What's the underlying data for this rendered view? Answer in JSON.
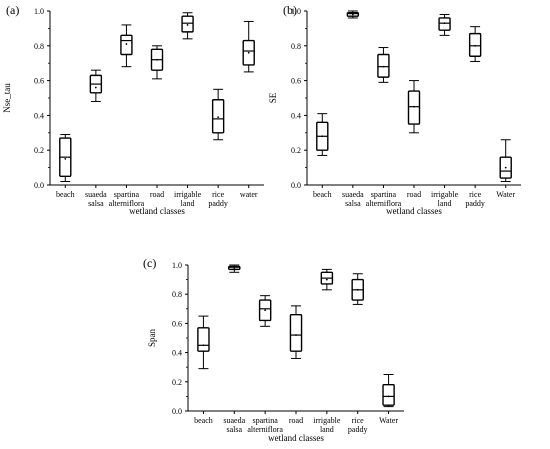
{
  "chart_data": [
    {
      "type": "box",
      "panel_label": "(a)",
      "ylabel": "Nse_tau",
      "xlabel": "wetland classes",
      "ylim": [
        0,
        1.0
      ],
      "yticks": [
        "0.0",
        "0.2",
        "0.4",
        "0.6",
        "0.8",
        "1.0"
      ],
      "categories": [
        [
          "beach"
        ],
        [
          "suaeda",
          "salsa"
        ],
        [
          "spartina",
          "alterniflora"
        ],
        [
          "road"
        ],
        [
          "irrigable",
          "land"
        ],
        [
          "rice",
          "paddy"
        ],
        [
          "water"
        ]
      ],
      "boxes": [
        {
          "min": 0.02,
          "q1": 0.05,
          "median": 0.16,
          "mean": 0.15,
          "q3": 0.27,
          "max": 0.29
        },
        {
          "min": 0.48,
          "q1": 0.53,
          "median": 0.58,
          "mean": 0.56,
          "q3": 0.63,
          "max": 0.66
        },
        {
          "min": 0.68,
          "q1": 0.75,
          "median": 0.83,
          "mean": 0.81,
          "q3": 0.86,
          "max": 0.92
        },
        {
          "min": 0.61,
          "q1": 0.66,
          "median": 0.72,
          "mean": 0.72,
          "q3": 0.78,
          "max": 0.8
        },
        {
          "min": 0.84,
          "q1": 0.88,
          "median": 0.93,
          "mean": 0.92,
          "q3": 0.97,
          "max": 0.99
        },
        {
          "min": 0.26,
          "q1": 0.3,
          "median": 0.38,
          "mean": 0.39,
          "q3": 0.49,
          "max": 0.55
        },
        {
          "min": 0.65,
          "q1": 0.69,
          "median": 0.77,
          "mean": 0.76,
          "q3": 0.83,
          "max": 0.94
        }
      ]
    },
    {
      "type": "box",
      "panel_label": "(b)",
      "ylabel": "SE",
      "xlabel": "wetland classes",
      "ylim": [
        0,
        1.0
      ],
      "yticks": [
        "0.0",
        "0.2",
        "0.4",
        "0.6",
        "0.8",
        "1.0"
      ],
      "categories": [
        [
          "beach"
        ],
        [
          "suaeda",
          "salsa"
        ],
        [
          "spartina",
          "alterniflora"
        ],
        [
          "road"
        ],
        [
          "irrigable",
          "land"
        ],
        [
          "rice",
          "paddy"
        ],
        [
          "Water"
        ]
      ],
      "boxes": [
        {
          "min": 0.17,
          "q1": 0.2,
          "median": 0.28,
          "mean": 0.28,
          "q3": 0.36,
          "max": 0.41
        },
        {
          "min": 0.96,
          "q1": 0.97,
          "median": 0.985,
          "mean": 0.98,
          "q3": 0.99,
          "max": 1.0
        },
        {
          "min": 0.59,
          "q1": 0.62,
          "median": 0.68,
          "mean": 0.68,
          "q3": 0.75,
          "max": 0.79
        },
        {
          "min": 0.3,
          "q1": 0.35,
          "median": 0.45,
          "mean": 0.45,
          "q3": 0.54,
          "max": 0.6
        },
        {
          "min": 0.86,
          "q1": 0.89,
          "median": 0.93,
          "mean": 0.93,
          "q3": 0.96,
          "max": 0.98
        },
        {
          "min": 0.71,
          "q1": 0.74,
          "median": 0.8,
          "mean": 0.8,
          "q3": 0.87,
          "max": 0.91
        },
        {
          "min": 0.02,
          "q1": 0.04,
          "median": 0.08,
          "mean": 0.1,
          "q3": 0.16,
          "max": 0.26
        }
      ]
    },
    {
      "type": "box",
      "panel_label": "(c)",
      "ylabel": "Span",
      "xlabel": "wetland classes",
      "ylim": [
        0,
        1.0
      ],
      "yticks": [
        "0.0",
        "0.2",
        "0.4",
        "0.6",
        "0.8",
        "1.0"
      ],
      "categories": [
        [
          "beach"
        ],
        [
          "suaeda",
          "salsa"
        ],
        [
          "spartina",
          "alterniflora"
        ],
        [
          "road"
        ],
        [
          "irrigable",
          "land"
        ],
        [
          "rice",
          "paddy"
        ],
        [
          "Water"
        ]
      ],
      "boxes": [
        {
          "min": 0.29,
          "q1": 0.41,
          "median": 0.45,
          "mean": 0.45,
          "q3": 0.57,
          "max": 0.65
        },
        {
          "min": 0.95,
          "q1": 0.97,
          "median": 0.985,
          "mean": 0.98,
          "q3": 0.99,
          "max": 1.0
        },
        {
          "min": 0.58,
          "q1": 0.62,
          "median": 0.7,
          "mean": 0.69,
          "q3": 0.76,
          "max": 0.79
        },
        {
          "min": 0.36,
          "q1": 0.41,
          "median": 0.52,
          "mean": 0.52,
          "q3": 0.66,
          "max": 0.72
        },
        {
          "min": 0.83,
          "q1": 0.87,
          "median": 0.91,
          "mean": 0.9,
          "q3": 0.95,
          "max": 0.97
        },
        {
          "min": 0.73,
          "q1": 0.76,
          "median": 0.83,
          "mean": 0.83,
          "q3": 0.9,
          "max": 0.94
        },
        {
          "min": 0.03,
          "q1": 0.04,
          "median": 0.1,
          "mean": 0.1,
          "q3": 0.18,
          "max": 0.25
        }
      ]
    }
  ]
}
